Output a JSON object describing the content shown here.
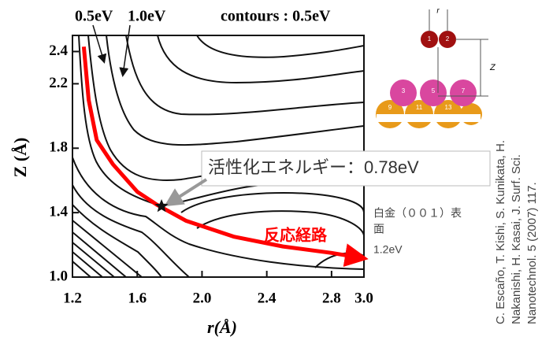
{
  "chart_data": {
    "type": "contour",
    "title": "contours : 0.5eV",
    "level_labels": [
      "0.5eV",
      "1.0eV"
    ],
    "xlabel": "r(Å)",
    "ylabel": "Z (Å)",
    "xlim": [
      1.2,
      3.0
    ],
    "ylim": [
      1.0,
      2.5
    ],
    "xticks": [
      1.2,
      1.6,
      {
        "value": 2,
        "label": "2.0"
      },
      2.4,
      2.8,
      {
        "value": 3,
        "label": "3.0"
      }
    ],
    "yticks": [
      {
        "value": 1,
        "label": "1.0"
      },
      1.4,
      1.8,
      2.2,
      2.4
    ],
    "path": {
      "name": "反応経路",
      "color": "#ff0000",
      "x": [
        1.27,
        1.3,
        1.35,
        1.45,
        1.6,
        1.72,
        1.9,
        2.2,
        2.5,
        2.8,
        2.98
      ],
      "y": [
        2.43,
        2.1,
        1.85,
        1.7,
        1.53,
        1.45,
        1.35,
        1.25,
        1.19,
        1.15,
        1.12
      ]
    },
    "saddle_point": {
      "x": 1.75,
      "y": 1.44,
      "label": "活性化エネルギー：0.78eV"
    },
    "surface_label": [
      "白金（００１）表",
      "面"
    ],
    "surface_energy": "1.2eV",
    "citation": [
      "C. Escaño, T. Kishi, S. Kunikata, H.",
      "Nakanishi, H. Kasai, J. Surf. Sci.",
      "Nanotechnol. 5 (2007) 117."
    ],
    "diagram": {
      "r": "r",
      "z": "Z",
      "atoms": [
        "1",
        "2",
        "3",
        "5",
        "7",
        "9",
        "11",
        "13"
      ]
    }
  }
}
